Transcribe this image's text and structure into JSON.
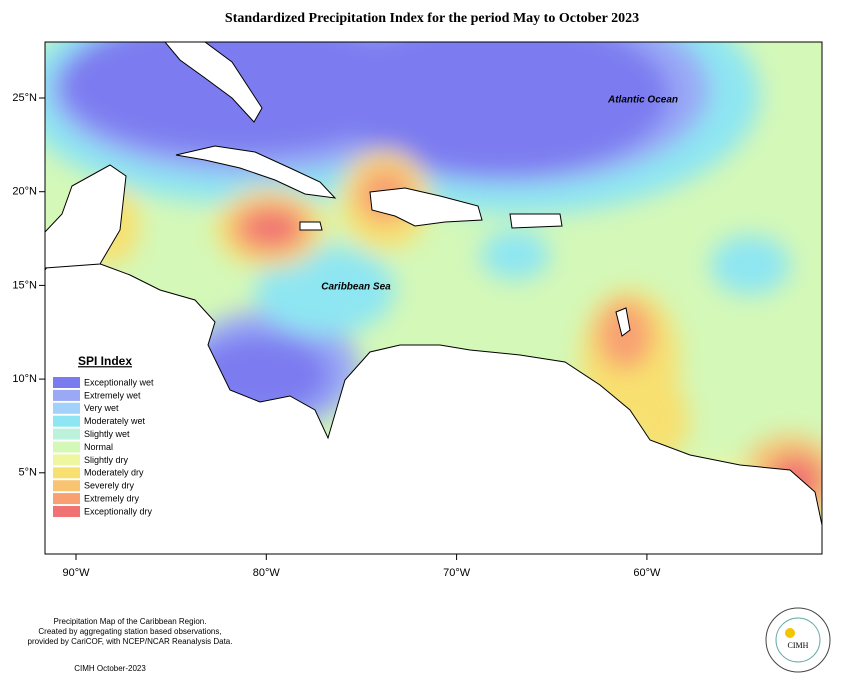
{
  "title": "Standardized Precipitation Index for the period May to October 2023",
  "map_labels": {
    "atlantic": "Atlantic Ocean",
    "caribbean": "Caribbean Sea"
  },
  "lat_ticks": [
    "25°N",
    "20°N",
    "15°N",
    "10°N",
    "5°N"
  ],
  "lon_ticks": [
    "90°W",
    "80°W",
    "70°W",
    "60°W"
  ],
  "legend": {
    "title": "SPI Index",
    "items": [
      {
        "label": "Exceptionally wet",
        "color": "#7b7bf0"
      },
      {
        "label": "Extremely wet",
        "color": "#9aa8f6"
      },
      {
        "label": "Very wet",
        "color": "#a2d2fa"
      },
      {
        "label": "Moderately wet",
        "color": "#8ee6f2"
      },
      {
        "label": "Slightly wet",
        "color": "#bcf2dc"
      },
      {
        "label": "Normal",
        "color": "#d4f8b8"
      },
      {
        "label": "Slightly dry",
        "color": "#eef6a0"
      },
      {
        "label": "Moderately dry",
        "color": "#f8e070"
      },
      {
        "label": "Severely dry",
        "color": "#f8c472"
      },
      {
        "label": "Extremely dry",
        "color": "#f8a072"
      },
      {
        "label": "Exceptionally dry",
        "color": "#f07272"
      }
    ]
  },
  "footer": {
    "lines": [
      "Precipitation Map of the Caribbean Region.",
      "Created by aggregating station based observations,",
      "provided by CariCOF, with NCEP/NCAR Reanalysis Data."
    ],
    "credit": "CIMH October-2023"
  },
  "logo": {
    "label": "CIMH"
  }
}
